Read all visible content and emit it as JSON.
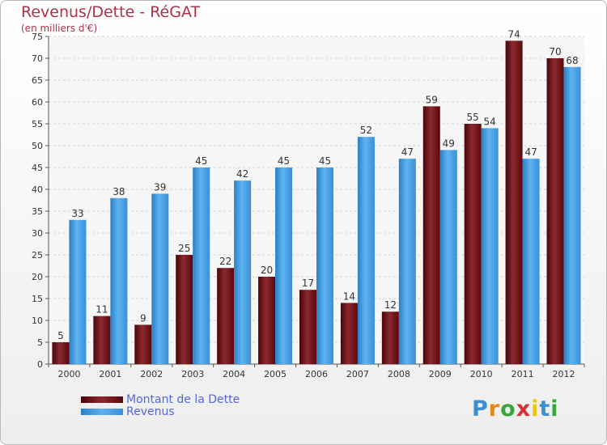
{
  "chart_data": {
    "type": "bar",
    "title": "Revenus/Dette - RéGAT",
    "subtitle": "(en milliers d'€)",
    "categories": [
      "2000",
      "2001",
      "2002",
      "2003",
      "2004",
      "2005",
      "2006",
      "2007",
      "2008",
      "2009",
      "2010",
      "2011",
      "2012"
    ],
    "series": [
      {
        "name": "Montant de la Dette",
        "color": "#6b0a10",
        "values": [
          5,
          11,
          9,
          25,
          22,
          20,
          17,
          14,
          12,
          59,
          55,
          74,
          70
        ]
      },
      {
        "name": "Revenus",
        "color": "#3f9be0",
        "values": [
          33,
          38,
          39,
          45,
          42,
          45,
          45,
          52,
          47,
          49,
          54,
          47,
          68
        ]
      }
    ],
    "ylim": [
      0,
      75
    ],
    "yticks": [
      0,
      5,
      10,
      15,
      20,
      25,
      30,
      35,
      40,
      45,
      50,
      55,
      60,
      65,
      70,
      75
    ],
    "grid": true,
    "legend": "bottom-left"
  },
  "logo": {
    "letters": [
      "P",
      "r",
      "o",
      "x",
      "i",
      "t",
      "i"
    ],
    "colors": [
      "#3b8fd0",
      "#e08a1e",
      "#3aa63a",
      "#d83030",
      "#e8c41a",
      "#3b8fd0",
      "#3aa63a"
    ]
  }
}
